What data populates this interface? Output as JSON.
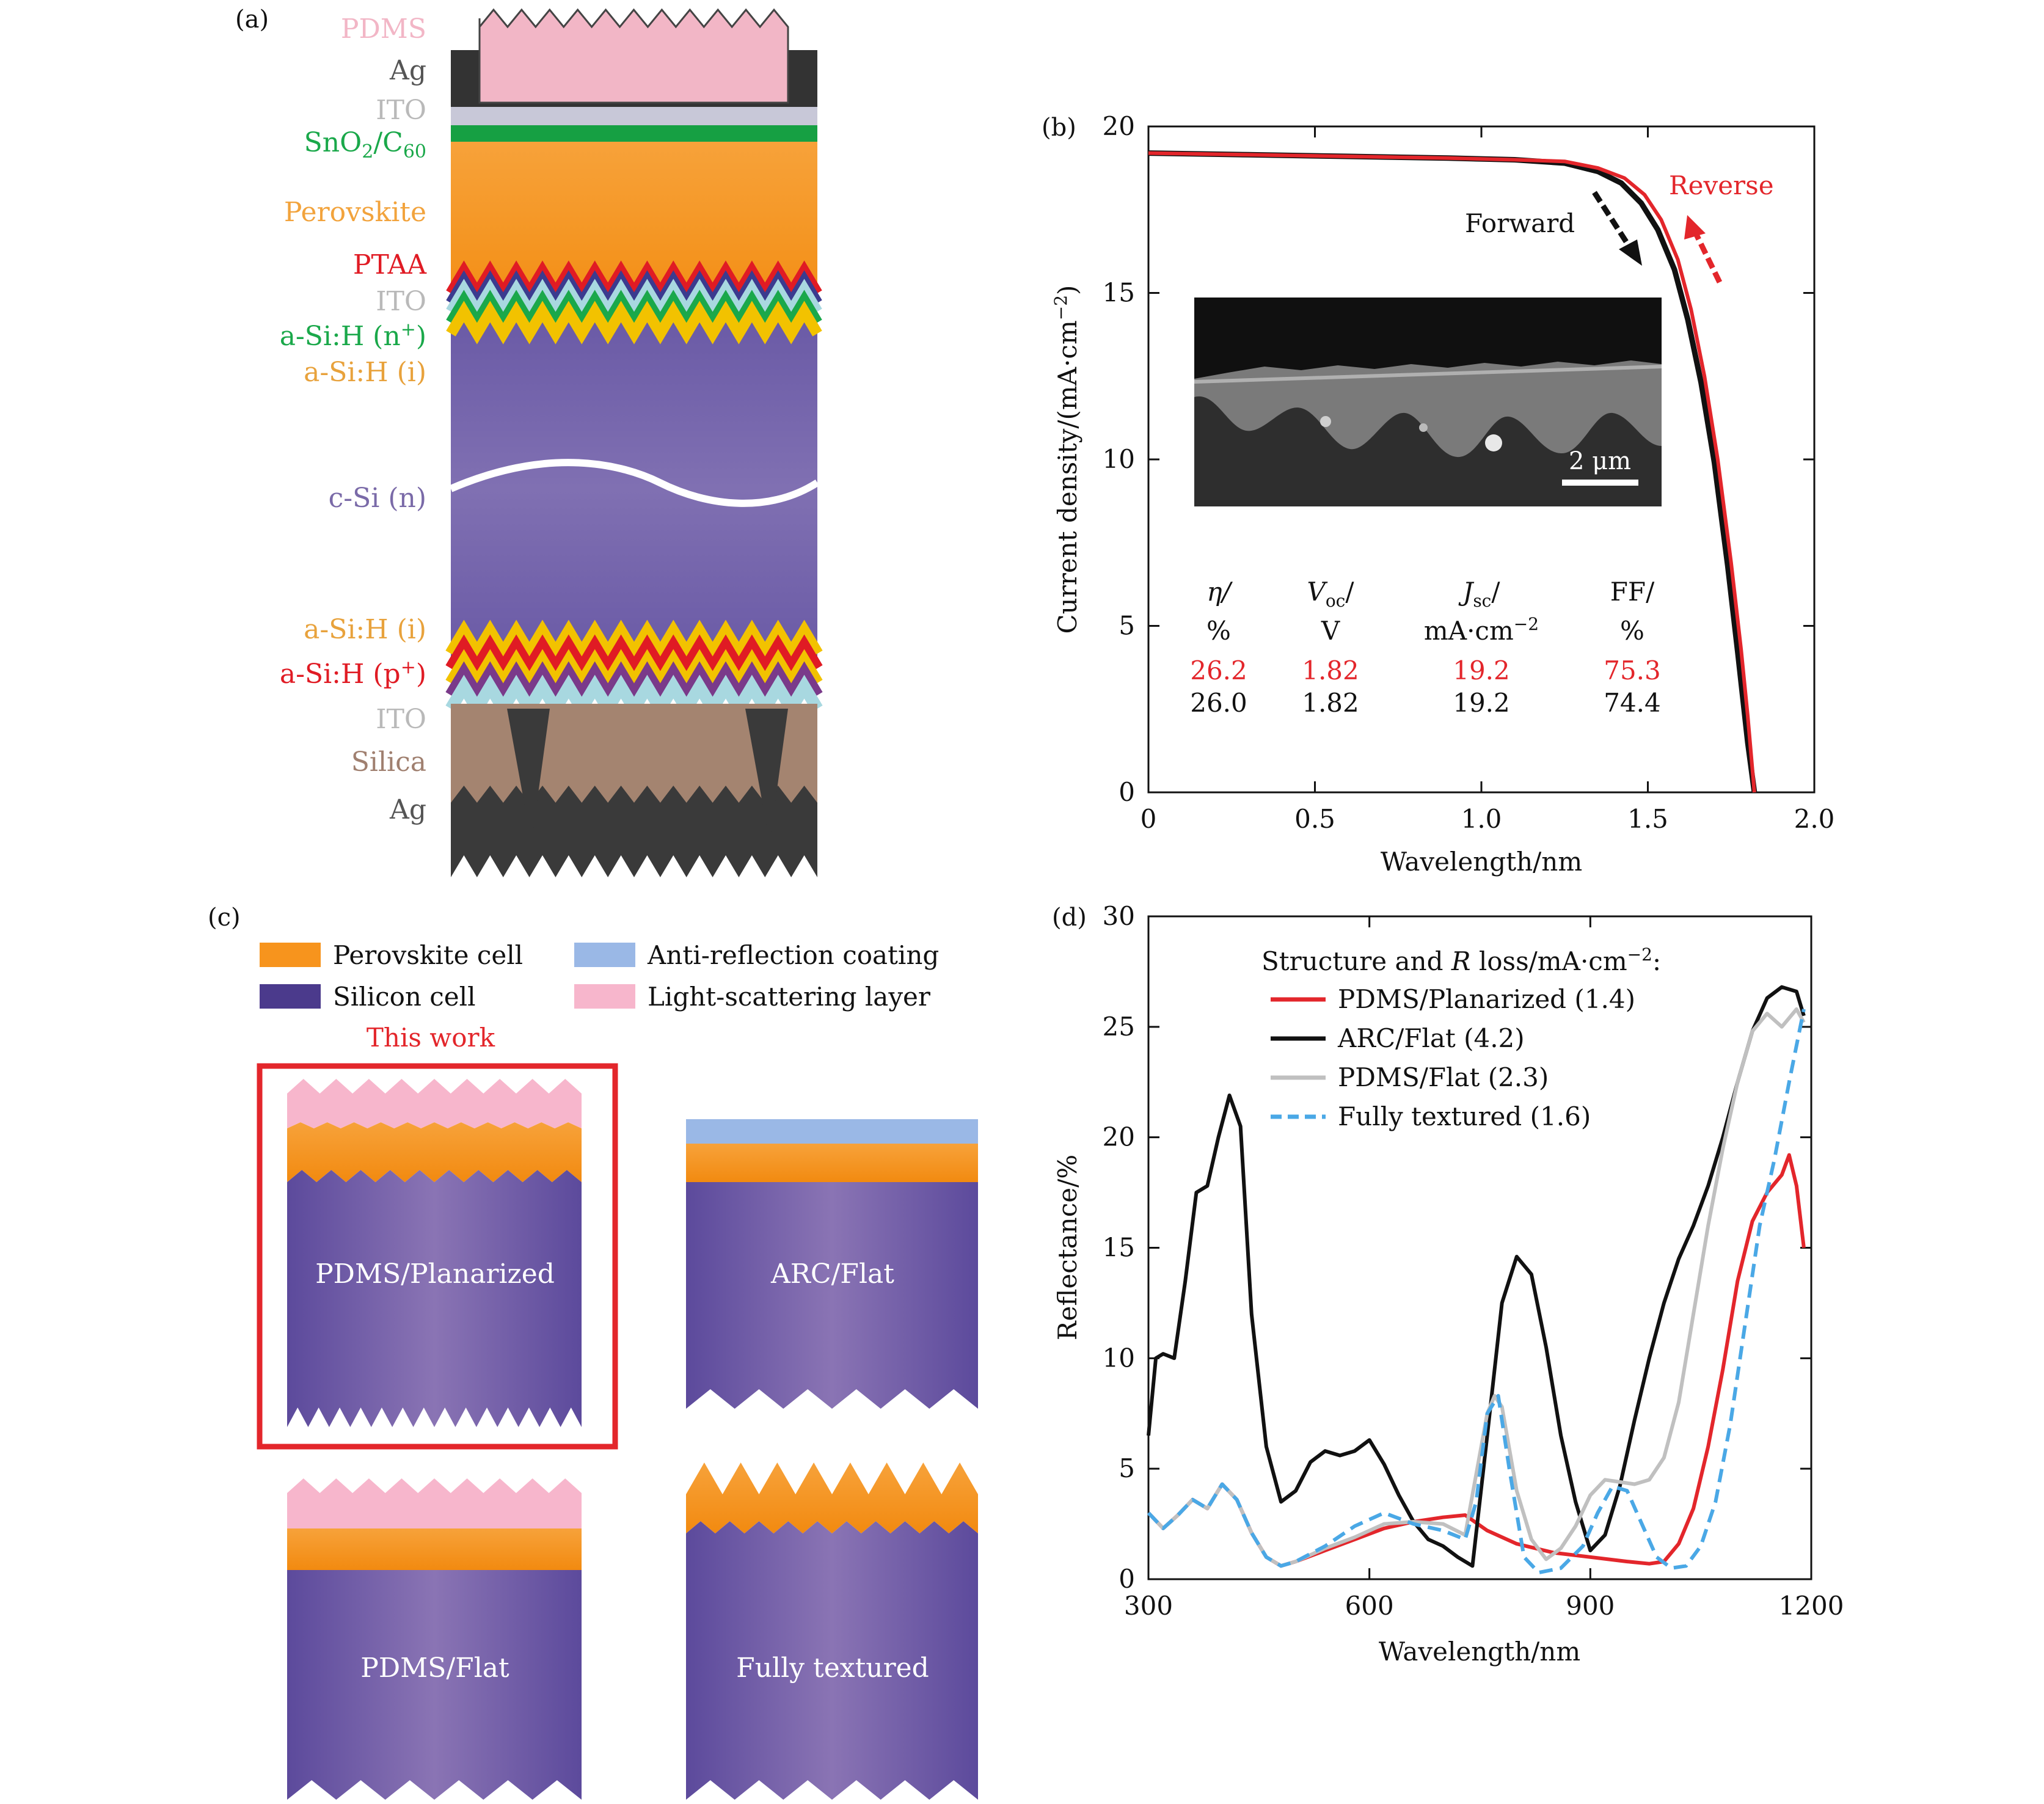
{
  "panel_a": {
    "label": "(a)",
    "layers": [
      {
        "name": "PDMS",
        "color": "#f2b6c6"
      },
      {
        "name": "Ag",
        "color": "#555555"
      },
      {
        "name": "ITO",
        "color": "#b9b9b9"
      },
      {
        "name": "SnO",
        "sub": "2",
        "name2": "/C",
        "sub2": "60",
        "color": "#1aa84a"
      },
      {
        "name": "Perovskite",
        "color": "#f2a33c"
      },
      {
        "name": "PTAA",
        "color": "#e01b24"
      },
      {
        "name": "ITO",
        "color": "#b9b9b9"
      },
      {
        "name": "a-Si:H (n",
        "sup": "+",
        "name2": ")",
        "color": "#1aa84a"
      },
      {
        "name": "a-Si:H (i)",
        "color": "#e8a23c"
      },
      {
        "name": "c-Si (n)",
        "color": "#7a6aa8"
      },
      {
        "name": "a-Si:H (i)",
        "color": "#e8a23c"
      },
      {
        "name": "a-Si:H (p",
        "sup": "+",
        "name2": ")",
        "color": "#e01b24"
      },
      {
        "name": "ITO",
        "color": "#b9b9b9"
      },
      {
        "name": "Silica",
        "color": "#a08070"
      },
      {
        "name": "Ag",
        "color": "#555555"
      }
    ]
  },
  "panel_b": {
    "label": "(b)",
    "xlabel": "Wavelength/nm",
    "ylabel": "Current density/(mA·cm",
    "ylabel_sup": "−2",
    "ylabel_end": ")",
    "annotations": {
      "forward": "Forward",
      "reverse": "Reverse",
      "scale_bar": "2 μm"
    },
    "table": {
      "headers": [
        {
          "main": "η/",
          "italic": true,
          "unit": "%"
        },
        {
          "main": "V",
          "italic": true,
          "sub": "oc",
          "after": "/",
          "unit": "V"
        },
        {
          "main": "J",
          "italic": true,
          "sub": "sc",
          "after": "/",
          "unit": "mA·cm",
          "unit_sup": "−2"
        },
        {
          "main": "FF/",
          "unit": "%"
        }
      ],
      "reverse_row": [
        "26.2",
        "1.82",
        "19.2",
        "75.3"
      ],
      "forward_row": [
        "26.0",
        "1.82",
        "19.2",
        "74.4"
      ]
    }
  },
  "panel_c": {
    "label": "(c)",
    "legend": [
      {
        "text": "Perovskite cell",
        "color": "#f7941d"
      },
      {
        "text": "Anti-reflection coating",
        "color": "#9ab8e6"
      },
      {
        "text": "Silicon cell",
        "color": "#4b3a8c"
      },
      {
        "text": "Light-scattering layer",
        "color": "#f7b6cc"
      }
    ],
    "this_work": "This work",
    "cells": [
      "PDMS/Planarized",
      "ARC/Flat",
      "PDMS/Flat",
      "Fully textured"
    ]
  },
  "panel_d": {
    "label": "(d)",
    "xlabel": "Wavelength/nm",
    "ylabel": "Reflectance/%",
    "legend_title": "Structure and ",
    "legend_title_italic": "R",
    "legend_title_end": " loss/mA·cm",
    "legend_title_sup": "−2",
    "legend_title_colon": ":"
  },
  "chart_data": [
    {
      "type": "line",
      "panel": "b",
      "xlabel": "Wavelength/nm",
      "ylabel": "Current density/(mA·cm−2)",
      "xlim": [
        0,
        2.0
      ],
      "ylim": [
        0,
        20
      ],
      "xticks": [
        0,
        0.5,
        1.0,
        1.5,
        2.0
      ],
      "xtick_labels": [
        "0",
        "0.5",
        "1.0",
        "1.5",
        "2.0"
      ],
      "yticks": [
        0,
        5,
        10,
        15,
        20
      ],
      "ytick_labels": [
        "0",
        "5",
        "10",
        "15",
        "20"
      ],
      "series": [
        {
          "name": "Forward",
          "color": "#111111",
          "x": [
            0,
            0.3,
            0.6,
            0.9,
            1.1,
            1.25,
            1.35,
            1.42,
            1.48,
            1.53,
            1.58,
            1.62,
            1.66,
            1.7,
            1.74,
            1.77,
            1.8,
            1.82
          ],
          "y": [
            19.2,
            19.15,
            19.1,
            19.05,
            19.0,
            18.9,
            18.65,
            18.3,
            17.7,
            16.9,
            15.7,
            14.2,
            12.3,
            9.9,
            6.8,
            4.2,
            1.5,
            0
          ]
        },
        {
          "name": "Reverse",
          "color": "#e3262b",
          "x": [
            0,
            0.3,
            0.6,
            0.9,
            1.1,
            1.25,
            1.35,
            1.43,
            1.49,
            1.54,
            1.59,
            1.63,
            1.67,
            1.71,
            1.75,
            1.78,
            1.8,
            1.82
          ],
          "y": [
            19.2,
            19.15,
            19.1,
            19.05,
            19.0,
            18.95,
            18.75,
            18.45,
            17.95,
            17.2,
            16.0,
            14.5,
            12.5,
            10.0,
            6.9,
            4.3,
            2.3,
            0
          ]
        }
      ]
    },
    {
      "type": "line",
      "panel": "d",
      "xlabel": "Wavelength/nm",
      "ylabel": "Reflectance/%",
      "xlim": [
        300,
        1200
      ],
      "ylim": [
        0,
        30
      ],
      "xticks": [
        300,
        600,
        900,
        1200
      ],
      "xtick_labels": [
        "300",
        "600",
        "900",
        "1200"
      ],
      "yticks": [
        0,
        5,
        10,
        15,
        20,
        25,
        30
      ],
      "ytick_labels": [
        "0",
        "5",
        "10",
        "15",
        "20",
        "25",
        "30"
      ],
      "series": [
        {
          "name": "PDMS/Planarized (1.4)",
          "color": "#e3262b",
          "dash": false,
          "x": [
            300,
            320,
            340,
            360,
            380,
            400,
            420,
            440,
            460,
            480,
            500,
            540,
            580,
            620,
            660,
            700,
            730,
            760,
            800,
            850,
            900,
            950,
            980,
            1000,
            1020,
            1040,
            1060,
            1080,
            1100,
            1120,
            1140,
            1160,
            1170,
            1180,
            1190
          ],
          "y": [
            3.0,
            2.3,
            2.9,
            3.6,
            3.2,
            4.3,
            3.6,
            2.1,
            1.0,
            0.6,
            0.8,
            1.3,
            1.8,
            2.3,
            2.6,
            2.8,
            2.9,
            2.2,
            1.6,
            1.2,
            1.0,
            0.8,
            0.7,
            0.8,
            1.6,
            3.2,
            6.0,
            9.5,
            13.5,
            16.2,
            17.5,
            18.3,
            19.2,
            17.8,
            15.0
          ]
        },
        {
          "name": "ARC/Flat (4.2)",
          "color": "#111111",
          "dash": false,
          "x": [
            300,
            310,
            320,
            335,
            350,
            365,
            380,
            395,
            410,
            425,
            440,
            460,
            480,
            500,
            520,
            540,
            560,
            580,
            600,
            620,
            640,
            660,
            680,
            700,
            720,
            740,
            760,
            780,
            800,
            820,
            840,
            860,
            880,
            900,
            920,
            940,
            960,
            980,
            1000,
            1020,
            1040,
            1060,
            1080,
            1100,
            1120,
            1140,
            1160,
            1180,
            1190
          ],
          "y": [
            6.5,
            10.0,
            10.2,
            10.0,
            13.5,
            17.5,
            17.8,
            20.0,
            21.9,
            20.5,
            12.0,
            6.0,
            3.5,
            4.0,
            5.3,
            5.8,
            5.6,
            5.8,
            6.3,
            5.2,
            3.8,
            2.6,
            1.8,
            1.5,
            1.0,
            0.6,
            6.5,
            12.5,
            14.6,
            13.8,
            10.5,
            6.5,
            3.5,
            1.3,
            2.0,
            4.2,
            7.2,
            10.0,
            12.5,
            14.5,
            16.0,
            17.8,
            20.0,
            22.5,
            24.8,
            26.3,
            26.8,
            26.6,
            25.5
          ]
        },
        {
          "name": "PDMS/Flat (2.3)",
          "color": "#c0c0c0",
          "dash": false,
          "x": [
            300,
            320,
            340,
            360,
            380,
            400,
            420,
            440,
            460,
            480,
            500,
            540,
            580,
            620,
            660,
            700,
            730,
            760,
            770,
            780,
            800,
            820,
            840,
            860,
            880,
            900,
            920,
            940,
            960,
            980,
            1000,
            1020,
            1040,
            1060,
            1080,
            1100,
            1120,
            1140,
            1160,
            1180,
            1190
          ],
          "y": [
            3.0,
            2.3,
            2.9,
            3.6,
            3.2,
            4.3,
            3.6,
            2.1,
            1.0,
            0.6,
            0.8,
            1.4,
            1.9,
            2.5,
            2.6,
            2.5,
            2.0,
            7.5,
            8.3,
            7.8,
            4.0,
            1.8,
            0.9,
            1.4,
            2.4,
            3.8,
            4.5,
            4.4,
            4.3,
            4.5,
            5.5,
            8.0,
            12.0,
            16.0,
            19.5,
            22.5,
            24.8,
            25.6,
            25.0,
            25.8,
            25.2
          ]
        },
        {
          "name": "Fully textured (1.6)",
          "color": "#4aa8e6",
          "dash": true,
          "x": [
            300,
            320,
            340,
            360,
            380,
            400,
            420,
            440,
            460,
            480,
            500,
            540,
            580,
            620,
            660,
            700,
            730,
            745,
            760,
            775,
            790,
            810,
            830,
            860,
            890,
            910,
            930,
            950,
            970,
            990,
            1010,
            1030,
            1050,
            1070,
            1090,
            1110,
            1130,
            1150,
            1170,
            1190
          ],
          "y": [
            3.0,
            2.3,
            2.9,
            3.6,
            3.2,
            4.3,
            3.6,
            2.1,
            1.0,
            0.6,
            0.8,
            1.5,
            2.4,
            3.0,
            2.5,
            2.2,
            1.8,
            3.5,
            7.5,
            8.3,
            5.0,
            1.0,
            0.3,
            0.5,
            1.5,
            3.0,
            4.2,
            4.0,
            2.5,
            1.0,
            0.5,
            0.6,
            1.5,
            3.5,
            7.0,
            11.5,
            16.0,
            19.0,
            22.5,
            25.8
          ]
        }
      ]
    }
  ]
}
